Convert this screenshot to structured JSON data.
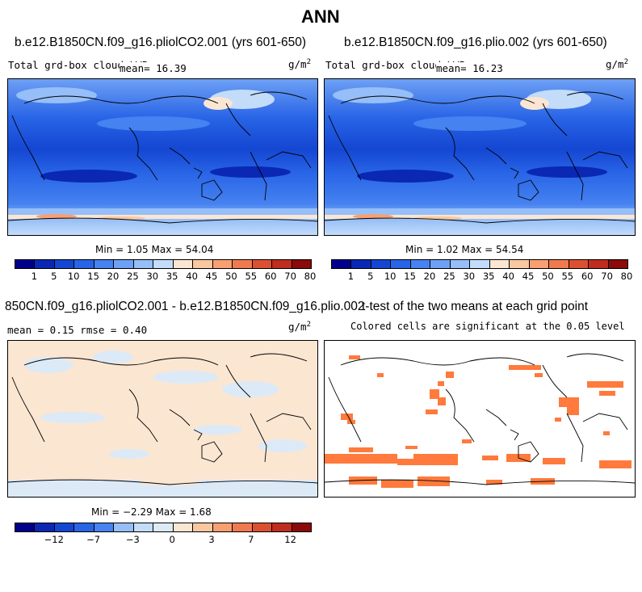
{
  "figure": {
    "title": "ANN",
    "units": "g/m",
    "units_sup": "2"
  },
  "panel_top_left": {
    "title": "b.e12.B1850CN.f09_g16.pliolCO2.001 (yrs 601-650)",
    "left_label": "Total grd-box cloud LWP",
    "mean_label": "mean=   16.39",
    "minmax": "Min =    1.05 Max =   54.04"
  },
  "panel_top_right": {
    "title": "b.e12.B1850CN.f09_g16.plio.002 (yrs 601-650)",
    "left_label": "Total grd-box cloud LWP",
    "mean_label": "mean=   16.23",
    "minmax": "Min =    1.02 Max =   54.54"
  },
  "panel_bottom_left": {
    "title": "850CN.f09_g16.pliolCO2.001 - b.e12.B1850CN.f09_g16.plio.002",
    "stats": "mean =    0.15    rmse =    0.40",
    "minmax": "Min =   −2.29 Max =    1.68"
  },
  "panel_bottom_right": {
    "title": "t-test of the two means at each grid point",
    "subtitle": "Colored cells are significant at the 0.05 level"
  },
  "colorbar_field": {
    "colors": [
      "#00008b",
      "#0a28b4",
      "#1446d2",
      "#2864e6",
      "#4682f0",
      "#6ea0f5",
      "#96bef8",
      "#c3dcfa",
      "#fae6d2",
      "#fac8a0",
      "#f8a072",
      "#f07a50",
      "#dc5032",
      "#be2d1e",
      "#8b0a0a"
    ],
    "labels": [
      "1",
      "5",
      "10",
      "15",
      "20",
      "25",
      "30",
      "35",
      "40",
      "45",
      "50",
      "55",
      "60",
      "70",
      "80"
    ]
  },
  "colorbar_diff": {
    "colors": [
      "#00008b",
      "#0a28b4",
      "#1446d2",
      "#2864e6",
      "#4682f0",
      "#96bef8",
      "#c3dcfa",
      "#dceaf8",
      "#fbe6d2",
      "#fac8a0",
      "#f8a072",
      "#f07a50",
      "#dc5032",
      "#be2d1e",
      "#8b0a0a"
    ],
    "labels": [
      "−12",
      "−7",
      "−3",
      "0",
      "3",
      "7",
      "12"
    ]
  },
  "chart_data": [
    {
      "type": "heatmap",
      "title": "b.e12.B1850CN.f09_g16.pliolCO2.001 (yrs 601-650)",
      "variable": "Total grd-box cloud LWP",
      "units": "g/m2",
      "mean": 16.39,
      "min": 1.05,
      "max": 54.04,
      "levels": [
        1,
        5,
        10,
        15,
        20,
        25,
        30,
        35,
        40,
        45,
        50,
        55,
        60,
        70,
        80
      ]
    },
    {
      "type": "heatmap",
      "title": "b.e12.B1850CN.f09_g16.plio.002 (yrs 601-650)",
      "variable": "Total grd-box cloud LWP",
      "units": "g/m2",
      "mean": 16.23,
      "min": 1.02,
      "max": 54.54,
      "levels": [
        1,
        5,
        10,
        15,
        20,
        25,
        30,
        35,
        40,
        45,
        50,
        55,
        60,
        70,
        80
      ]
    },
    {
      "type": "heatmap",
      "title": "850CN.f09_g16.pliolCO2.001 - b.e12.B1850CN.f09_g16.plio.002",
      "units": "g/m2",
      "mean": 0.15,
      "rmse": 0.4,
      "min": -2.29,
      "max": 1.68,
      "levels": [
        -12,
        -7,
        -3,
        0,
        3,
        7,
        12
      ]
    },
    {
      "type": "heatmap",
      "title": "t-test of the two means at each grid point",
      "subtitle": "Colored cells are significant at the 0.05 level"
    }
  ]
}
